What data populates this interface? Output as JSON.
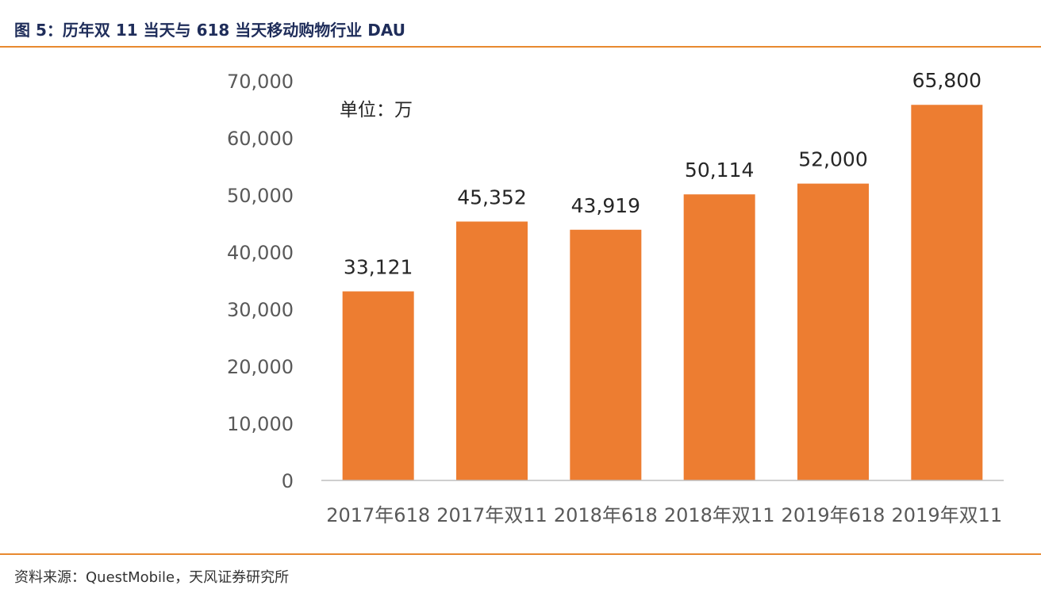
{
  "header": {
    "title": "图 5：历年双 11 当天与 618 当天移动购物行业 DAU"
  },
  "footer": {
    "source": "资料来源：QuestMobile，天风证券研究所"
  },
  "colors": {
    "bar": "#ed7d31",
    "accent_line": "#e8892f",
    "title": "#1f2d5a",
    "axis_text": "#595959",
    "label_text": "#262626"
  },
  "chart_data": {
    "type": "bar",
    "title": "",
    "unit_label": "单位：万",
    "categories": [
      "2017年618",
      "2017年双11",
      "2018年618",
      "2018年双11",
      "2019年618",
      "2019年双11"
    ],
    "values": [
      33121,
      45352,
      43919,
      50114,
      52000,
      65800
    ],
    "value_labels": [
      "33,121",
      "45,352",
      "43,919",
      "50,114",
      "52,000",
      "65,800"
    ],
    "ylim": [
      0,
      70000
    ],
    "yticks": [
      0,
      10000,
      20000,
      30000,
      40000,
      50000,
      60000,
      70000
    ],
    "ytick_labels": [
      "0",
      "10,000",
      "20,000",
      "30,000",
      "40,000",
      "50,000",
      "60,000",
      "70,000"
    ],
    "grid": false,
    "xlabel": "",
    "ylabel": ""
  }
}
